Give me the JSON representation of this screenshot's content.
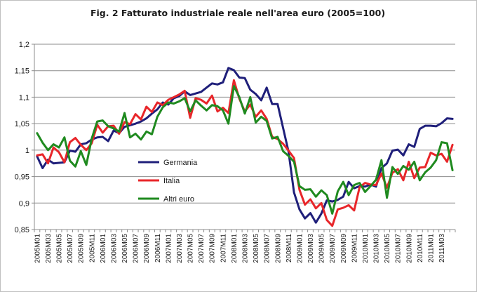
{
  "chart_data": {
    "type": "line",
    "title": "Fig. 2 Fatturato industriale reale nell'area euro (2005=100)",
    "xlabel": "",
    "ylabel": "",
    "ylim": [
      0.85,
      1.2
    ],
    "yticks": [
      0.85,
      0.9,
      0.95,
      1.0,
      1.05,
      1.1,
      1.15,
      1.2
    ],
    "ytick_labels": [
      "0,85",
      "0,9",
      "0,95",
      "1",
      "1,05",
      "1,1",
      "1,15",
      "1,2"
    ],
    "grid": true,
    "legend": "inside-center-left",
    "x": [
      "2005M01",
      "2005M02",
      "2005M03",
      "2005M04",
      "2005M05",
      "2005M06",
      "2005M07",
      "2005M08",
      "2005M09",
      "2005M10",
      "2005M11",
      "2005M12",
      "2006M01",
      "2006M02",
      "2006M03",
      "2006M04",
      "2006M05",
      "2006M06",
      "2006M07",
      "2006M08",
      "2006M09",
      "2006M10",
      "2006M11",
      "2006M12",
      "2007M01",
      "2007M02",
      "2007M03",
      "2007M04",
      "2007M05",
      "2007M06",
      "2007M07",
      "2007M08",
      "2007M09",
      "2007M10",
      "2007M11",
      "2007M12",
      "2008M01",
      "2008M02",
      "2008M03",
      "2008M04",
      "2008M05",
      "2008M06",
      "2008M07",
      "2008M08",
      "2008M09",
      "2008M10",
      "2008M11",
      "2008M12",
      "2009M01",
      "2009M02",
      "2009M03",
      "2009M04",
      "2009M05",
      "2009M06",
      "2009M07",
      "2009M08",
      "2009M09",
      "2009M10",
      "2009M11",
      "2009M12",
      "2010M01",
      "2010M02",
      "2010M03",
      "2010M04",
      "2010M05",
      "2010M06",
      "2010M07",
      "2010M08",
      "2010M09",
      "2010M10",
      "2010M11",
      "2010M12",
      "2011M01",
      "2011M02",
      "2011M03",
      "2011M04",
      "2011M05"
    ],
    "xtick_labels": [
      "2005M01",
      "2005M03",
      "2005M05",
      "2005M07",
      "2005M09",
      "2005M11",
      "2006M01",
      "2006M03",
      "2006M05",
      "2006M07",
      "2006M09",
      "2006M11",
      "2007M01",
      "2007M03",
      "2007M05",
      "2007M07",
      "2007M09",
      "2007M11",
      "2008M01",
      "2008M03",
      "2008M05",
      "2008M07",
      "2008M09",
      "2008M11",
      "2009M01",
      "2009M03",
      "2009M05",
      "2009M07",
      "2009M09",
      "2009M11",
      "2010M01",
      "2010M03",
      "2010M05",
      "2010M07",
      "2010M09",
      "2010M11",
      "2011M01",
      "2011M03"
    ],
    "series": [
      {
        "name": "Germania",
        "color": "#1f1f7a",
        "values": [
          0.988,
          0.966,
          0.982,
          0.975,
          0.976,
          0.977,
          0.999,
          0.997,
          1.011,
          1.013,
          1.02,
          1.024,
          1.025,
          1.017,
          1.037,
          1.032,
          1.044,
          1.047,
          1.05,
          1.054,
          1.06,
          1.069,
          1.077,
          1.09,
          1.086,
          1.098,
          1.102,
          1.111,
          1.104,
          1.107,
          1.11,
          1.118,
          1.126,
          1.124,
          1.128,
          1.155,
          1.151,
          1.137,
          1.136,
          1.114,
          1.106,
          1.094,
          1.118,
          1.087,
          1.087,
          1.042,
          0.997,
          0.92,
          0.888,
          0.871,
          0.881,
          0.863,
          0.88,
          0.905,
          0.903,
          0.906,
          0.912,
          0.94,
          0.928,
          0.932,
          0.931,
          0.935,
          0.931,
          0.966,
          0.975,
          0.999,
          1.001,
          0.99,
          1.011,
          1.006,
          1.04,
          1.046,
          1.046,
          1.045,
          1.051,
          1.06,
          1.059
        ]
      },
      {
        "name": "Italia",
        "color": "#e8262a",
        "values": [
          0.99,
          0.992,
          0.975,
          1.005,
          0.996,
          0.977,
          1.015,
          1.023,
          1.01,
          1.0,
          1.013,
          1.048,
          1.033,
          1.045,
          1.046,
          1.031,
          1.053,
          1.049,
          1.068,
          1.058,
          1.082,
          1.072,
          1.09,
          1.085,
          1.095,
          1.1,
          1.105,
          1.112,
          1.061,
          1.098,
          1.095,
          1.088,
          1.103,
          1.073,
          1.08,
          1.07,
          1.132,
          1.097,
          1.073,
          1.086,
          1.063,
          1.075,
          1.059,
          1.025,
          1.021,
          1.012,
          0.999,
          0.985,
          0.925,
          0.897,
          0.907,
          0.89,
          0.9,
          0.868,
          0.857,
          0.888,
          0.891,
          0.896,
          0.886,
          0.93,
          0.938,
          0.935,
          0.934,
          0.956,
          0.929,
          0.957,
          0.964,
          0.943,
          0.978,
          0.947,
          0.967,
          0.968,
          0.995,
          0.99,
          0.993,
          0.978,
          1.01
        ]
      },
      {
        "name": "Altri euro",
        "color": "#1f8a1f",
        "values": [
          1.032,
          1.014,
          1.0,
          1.011,
          1.005,
          1.024,
          0.98,
          0.969,
          0.998,
          0.972,
          1.022,
          1.054,
          1.056,
          1.045,
          1.041,
          1.035,
          1.07,
          1.024,
          1.031,
          1.02,
          1.035,
          1.03,
          1.063,
          1.081,
          1.09,
          1.088,
          1.092,
          1.098,
          1.073,
          1.094,
          1.084,
          1.075,
          1.085,
          1.083,
          1.075,
          1.05,
          1.121,
          1.1,
          1.069,
          1.1,
          1.052,
          1.063,
          1.055,
          1.022,
          1.025,
          0.998,
          0.989,
          0.978,
          0.932,
          0.925,
          0.926,
          0.912,
          0.924,
          0.915,
          0.88,
          0.922,
          0.94,
          0.915,
          0.934,
          0.938,
          0.921,
          0.932,
          0.944,
          0.981,
          0.91,
          0.968,
          0.955,
          0.97,
          0.963,
          0.978,
          0.943,
          0.958,
          0.967,
          0.981,
          1.015,
          1.013,
          0.962
        ]
      }
    ]
  }
}
